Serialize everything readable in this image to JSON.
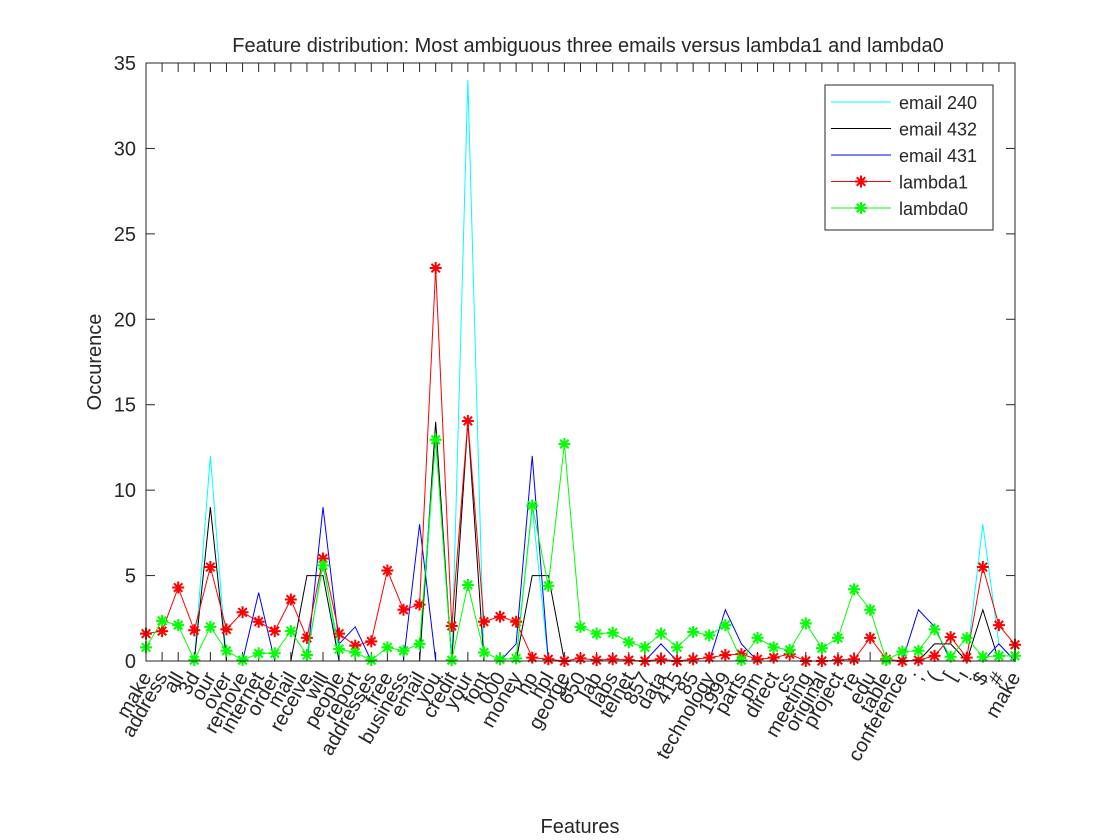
{
  "chart_data": {
    "type": "line",
    "title": "Feature distribution: Most ambiguous three emails versus lambda1 and lambda0",
    "xlabel": "Features",
    "ylabel": "Occurence",
    "categories": [
      "make",
      "address",
      "all",
      "3d",
      "our",
      "over",
      "remove",
      "internet",
      "order",
      "mail",
      "receive",
      "will",
      "people",
      "report",
      "addresses",
      "free",
      "business",
      "email",
      "you",
      "credit",
      "your",
      "font",
      "000",
      "money",
      "hp",
      "hpl",
      "george",
      "650",
      "lab",
      "labs",
      "telnet",
      "857",
      "data",
      "415",
      "85",
      "technology",
      "1999",
      "parts",
      "pm",
      "direct",
      "cs",
      "meeting",
      "original",
      "project",
      "re",
      "edu",
      "table",
      "conference",
      ";",
      "(",
      "[",
      "!",
      "$",
      "#",
      "make"
    ],
    "ylim": [
      0,
      35
    ],
    "yticks": [
      0,
      5,
      10,
      15,
      20,
      25,
      30,
      35
    ],
    "legend": "northeast",
    "series": [
      {
        "name": "email 240",
        "color": "#00ffff",
        "marker": "none",
        "values": [
          0,
          0,
          0,
          0,
          12,
          0,
          0,
          0,
          0,
          0,
          0,
          6,
          0,
          0,
          0,
          0,
          0,
          0,
          13,
          0,
          34,
          0,
          0,
          0,
          9,
          0,
          0,
          0,
          0,
          0,
          0,
          0,
          0,
          0,
          0,
          0,
          0,
          0,
          0,
          0,
          0,
          0,
          0,
          0,
          0,
          0,
          0,
          0,
          0,
          0,
          0,
          0,
          8,
          1,
          0
        ]
      },
      {
        "name": "email 432",
        "color": "#000000",
        "marker": "none",
        "values": [
          0,
          0,
          0,
          0,
          9,
          0,
          0,
          0,
          0,
          0,
          5,
          5,
          0,
          0,
          0,
          0,
          0,
          0,
          14,
          0,
          14,
          0,
          0,
          0,
          5,
          5,
          0,
          0,
          0,
          0,
          0,
          0,
          0,
          0,
          0,
          0,
          0,
          0,
          0,
          0,
          0,
          0,
          0,
          0,
          0,
          0,
          0,
          0,
          0,
          1,
          1,
          0,
          3,
          0,
          0
        ]
      },
      {
        "name": "email 431",
        "color": "#0000ff",
        "marker": "none",
        "values": [
          0,
          0,
          0,
          0,
          0,
          0,
          0,
          4,
          0,
          0,
          0,
          9,
          1,
          2,
          0,
          0,
          0,
          8,
          0,
          0,
          0,
          0,
          0,
          1,
          12,
          0,
          0,
          0,
          0,
          0,
          0,
          0,
          1,
          0,
          0,
          0,
          3,
          1,
          0,
          0,
          0,
          0,
          0,
          0,
          0,
          0,
          0,
          0,
          3,
          2,
          0,
          0,
          0,
          1,
          0
        ]
      },
      {
        "name": "lambda1",
        "color": "#ff0000",
        "marker": "*",
        "values": [
          1.6,
          1.75,
          4.3,
          1.8,
          5.5,
          1.85,
          2.85,
          2.3,
          1.75,
          3.6,
          1.35,
          6,
          1.6,
          0.9,
          1.15,
          5.3,
          3,
          3.3,
          23,
          2.05,
          14.05,
          2.3,
          2.6,
          2.3,
          0.2,
          0.1,
          0,
          0.15,
          0.05,
          0.1,
          0.05,
          0,
          0.1,
          0,
          0.1,
          0.2,
          0.35,
          0.4,
          0.1,
          0.2,
          0.4,
          0,
          0,
          0.05,
          0.1,
          1.35,
          0.1,
          0,
          0.05,
          0.3,
          1.4,
          0.2,
          5.5,
          2.1,
          0.95
        ]
      },
      {
        "name": "lambda0",
        "color": "#00ff00",
        "marker": "*",
        "values": [
          0.8,
          2.35,
          2.1,
          0.05,
          2,
          0.6,
          0.05,
          0.45,
          0.45,
          1.75,
          0.35,
          5.6,
          0.7,
          0.5,
          0.05,
          0.8,
          0.6,
          1,
          12.95,
          0.05,
          4.45,
          0.5,
          0.1,
          0.15,
          9.1,
          4.4,
          12.7,
          2,
          1.6,
          1.65,
          1.1,
          0.8,
          1.6,
          0.8,
          1.7,
          1.5,
          2.1,
          0.05,
          1.35,
          0.8,
          0.65,
          2.2,
          0.75,
          1.35,
          4.2,
          3,
          0.05,
          0.55,
          0.6,
          1.85,
          0.25,
          1.35,
          0.25,
          0.3,
          0.3
        ]
      }
    ]
  }
}
